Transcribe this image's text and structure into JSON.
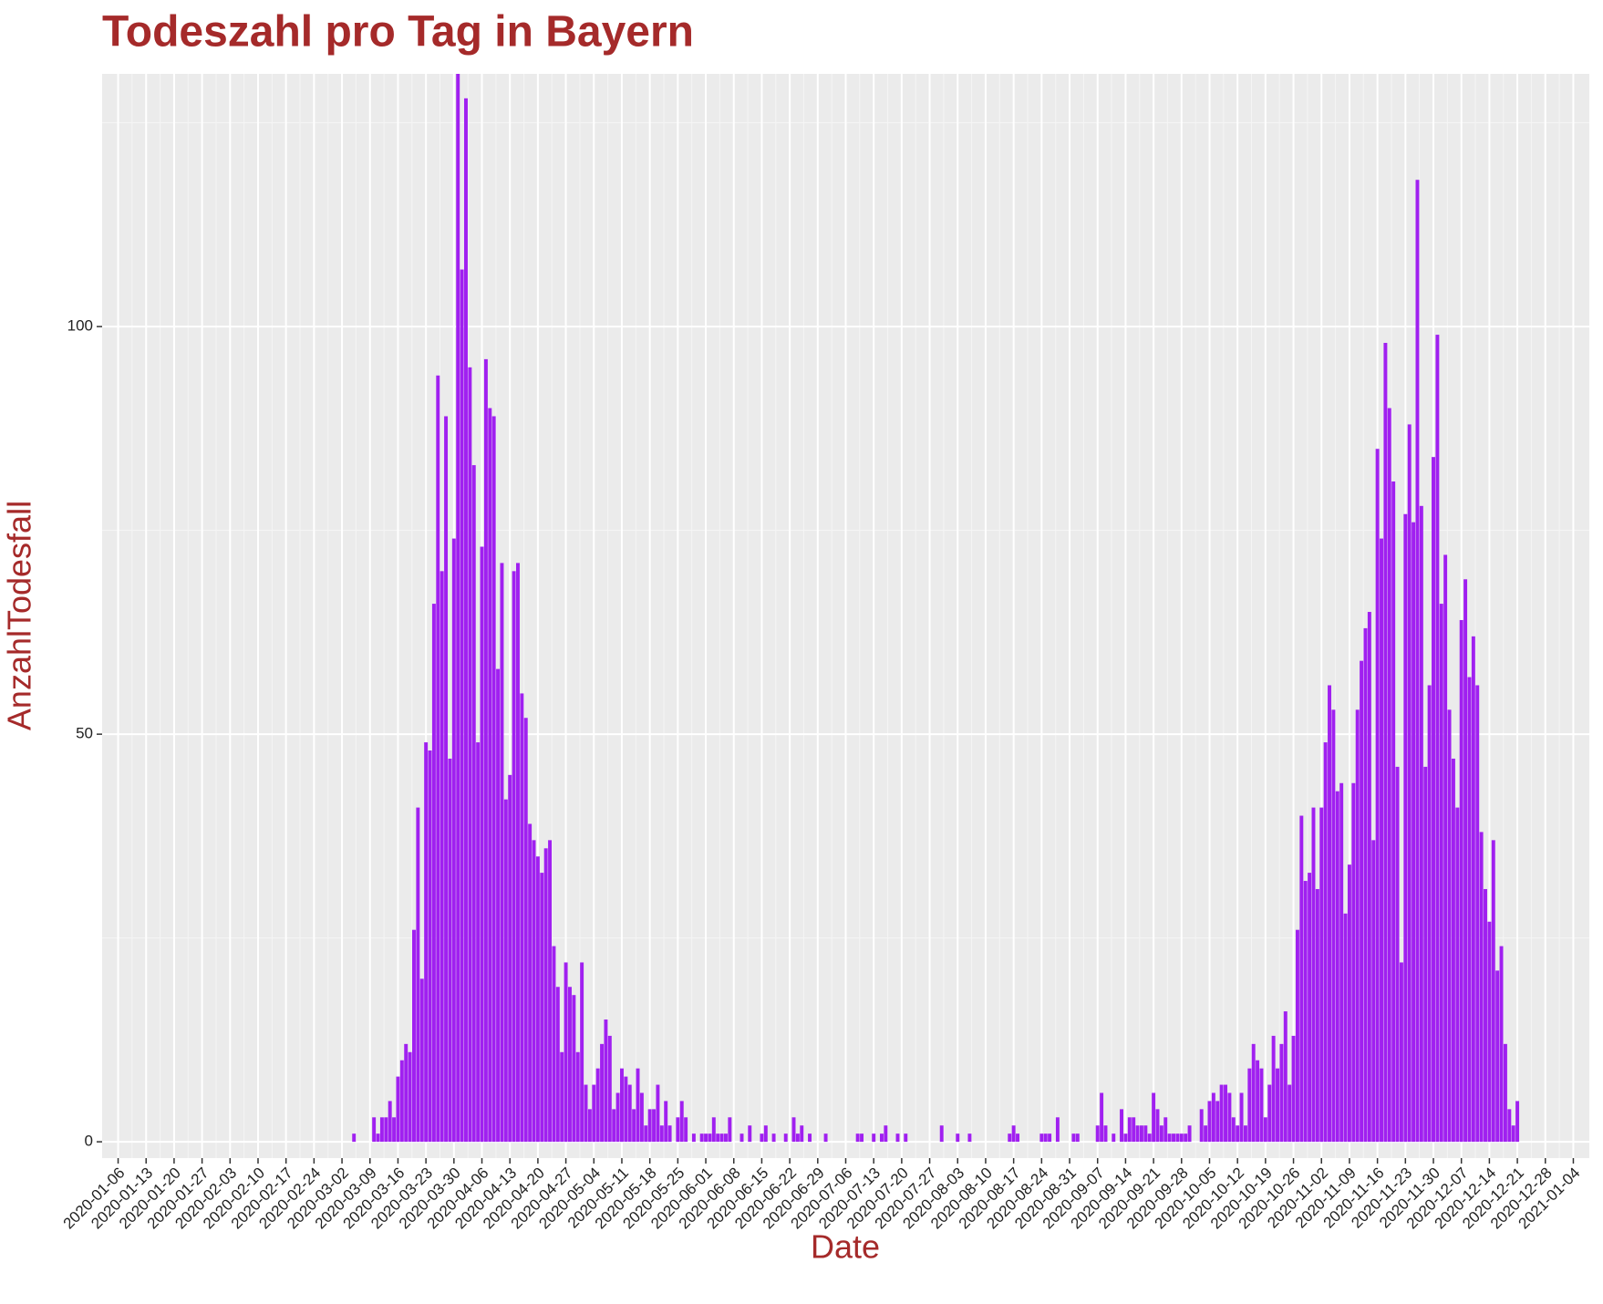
{
  "chart_data": {
    "type": "bar",
    "title": "Todeszahl pro Tag in Bayern",
    "x_label": "Date",
    "y_label": "AnzahlTodesfall",
    "color": "#a020f0",
    "grid": true,
    "xlim": [
      "2020-01-02",
      "2021-01-08"
    ],
    "ylim": [
      -2,
      131
    ],
    "yticks": [
      0,
      50,
      100
    ],
    "xticks": [
      "2020-01-06",
      "2020-01-13",
      "2020-01-20",
      "2020-01-27",
      "2020-02-03",
      "2020-02-10",
      "2020-02-17",
      "2020-02-24",
      "2020-03-02",
      "2020-03-09",
      "2020-03-16",
      "2020-03-23",
      "2020-03-30",
      "2020-04-06",
      "2020-04-13",
      "2020-04-20",
      "2020-04-27",
      "2020-05-04",
      "2020-05-11",
      "2020-05-18",
      "2020-05-25",
      "2020-06-01",
      "2020-06-08",
      "2020-06-15",
      "2020-06-22",
      "2020-06-29",
      "2020-07-06",
      "2020-07-13",
      "2020-07-20",
      "2020-07-27",
      "2020-08-03",
      "2020-08-10",
      "2020-08-17",
      "2020-08-24",
      "2020-08-31",
      "2020-09-07",
      "2020-09-14",
      "2020-09-21",
      "2020-09-28",
      "2020-10-05",
      "2020-10-12",
      "2020-10-19",
      "2020-10-26",
      "2020-11-02",
      "2020-11-09",
      "2020-11-16",
      "2020-11-23",
      "2020-11-30",
      "2020-12-07",
      "2020-12-14",
      "2020-12-21",
      "2020-12-28",
      "2021-01-04"
    ],
    "x": [
      "2020-03-05",
      "2020-03-06",
      "2020-03-07",
      "2020-03-08",
      "2020-03-09",
      "2020-03-10",
      "2020-03-11",
      "2020-03-12",
      "2020-03-13",
      "2020-03-14",
      "2020-03-15",
      "2020-03-16",
      "2020-03-17",
      "2020-03-18",
      "2020-03-19",
      "2020-03-20",
      "2020-03-21",
      "2020-03-22",
      "2020-03-23",
      "2020-03-24",
      "2020-03-25",
      "2020-03-26",
      "2020-03-27",
      "2020-03-28",
      "2020-03-29",
      "2020-03-30",
      "2020-03-31",
      "2020-04-01",
      "2020-04-02",
      "2020-04-03",
      "2020-04-04",
      "2020-04-05",
      "2020-04-06",
      "2020-04-07",
      "2020-04-08",
      "2020-04-09",
      "2020-04-10",
      "2020-04-11",
      "2020-04-12",
      "2020-04-13",
      "2020-04-14",
      "2020-04-15",
      "2020-04-16",
      "2020-04-17",
      "2020-04-18",
      "2020-04-19",
      "2020-04-20",
      "2020-04-21",
      "2020-04-22",
      "2020-04-23",
      "2020-04-24",
      "2020-04-25",
      "2020-04-26",
      "2020-04-27",
      "2020-04-28",
      "2020-04-29",
      "2020-04-30",
      "2020-05-01",
      "2020-05-02",
      "2020-05-03",
      "2020-05-04",
      "2020-05-05",
      "2020-05-06",
      "2020-05-07",
      "2020-05-08",
      "2020-05-09",
      "2020-05-10",
      "2020-05-11",
      "2020-05-12",
      "2020-05-13",
      "2020-05-14",
      "2020-05-15",
      "2020-05-16",
      "2020-05-17",
      "2020-05-18",
      "2020-05-19",
      "2020-05-20",
      "2020-05-21",
      "2020-05-22",
      "2020-05-23",
      "2020-05-24",
      "2020-05-25",
      "2020-05-26",
      "2020-05-27",
      "2020-05-28",
      "2020-05-29",
      "2020-05-30",
      "2020-05-31",
      "2020-06-01",
      "2020-06-02",
      "2020-06-03",
      "2020-06-04",
      "2020-06-05",
      "2020-06-06",
      "2020-06-07",
      "2020-06-08",
      "2020-06-09",
      "2020-06-10",
      "2020-06-11",
      "2020-06-12",
      "2020-06-13",
      "2020-06-14",
      "2020-06-15",
      "2020-06-16",
      "2020-06-17",
      "2020-06-18",
      "2020-06-19",
      "2020-06-20",
      "2020-06-21",
      "2020-06-22",
      "2020-06-23",
      "2020-06-24",
      "2020-06-25",
      "2020-06-26",
      "2020-06-27",
      "2020-06-28",
      "2020-06-29",
      "2020-06-30",
      "2020-07-01",
      "2020-07-02",
      "2020-07-03",
      "2020-07-04",
      "2020-07-05",
      "2020-07-06",
      "2020-07-07",
      "2020-07-08",
      "2020-07-09",
      "2020-07-10",
      "2020-07-11",
      "2020-07-12",
      "2020-07-13",
      "2020-07-14",
      "2020-07-15",
      "2020-07-16",
      "2020-07-17",
      "2020-07-18",
      "2020-07-19",
      "2020-07-20",
      "2020-07-21",
      "2020-07-22",
      "2020-07-23",
      "2020-07-24",
      "2020-07-25",
      "2020-07-26",
      "2020-07-27",
      "2020-07-28",
      "2020-07-29",
      "2020-07-30",
      "2020-07-31",
      "2020-08-01",
      "2020-08-02",
      "2020-08-03",
      "2020-08-04",
      "2020-08-05",
      "2020-08-06",
      "2020-08-07",
      "2020-08-08",
      "2020-08-09",
      "2020-08-10",
      "2020-08-11",
      "2020-08-12",
      "2020-08-13",
      "2020-08-14",
      "2020-08-15",
      "2020-08-16",
      "2020-08-17",
      "2020-08-18",
      "2020-08-19",
      "2020-08-20",
      "2020-08-21",
      "2020-08-22",
      "2020-08-23",
      "2020-08-24",
      "2020-08-25",
      "2020-08-26",
      "2020-08-27",
      "2020-08-28",
      "2020-08-29",
      "2020-08-30",
      "2020-08-31",
      "2020-09-01",
      "2020-09-02",
      "2020-09-03",
      "2020-09-04",
      "2020-09-05",
      "2020-09-06",
      "2020-09-07",
      "2020-09-08",
      "2020-09-09",
      "2020-09-10",
      "2020-09-11",
      "2020-09-12",
      "2020-09-13",
      "2020-09-14",
      "2020-09-15",
      "2020-09-16",
      "2020-09-17",
      "2020-09-18",
      "2020-09-19",
      "2020-09-20",
      "2020-09-21",
      "2020-09-22",
      "2020-09-23",
      "2020-09-24",
      "2020-09-25",
      "2020-09-26",
      "2020-09-27",
      "2020-09-28",
      "2020-09-29",
      "2020-09-30",
      "2020-10-01",
      "2020-10-02",
      "2020-10-03",
      "2020-10-04",
      "2020-10-05",
      "2020-10-06",
      "2020-10-07",
      "2020-10-08",
      "2020-10-09",
      "2020-10-10",
      "2020-10-11",
      "2020-10-12",
      "2020-10-13",
      "2020-10-14",
      "2020-10-15",
      "2020-10-16",
      "2020-10-17",
      "2020-10-18",
      "2020-10-19",
      "2020-10-20",
      "2020-10-21",
      "2020-10-22",
      "2020-10-23",
      "2020-10-24",
      "2020-10-25",
      "2020-10-26",
      "2020-10-27",
      "2020-10-28",
      "2020-10-29",
      "2020-10-30",
      "2020-10-31",
      "2020-11-01",
      "2020-11-02",
      "2020-11-03",
      "2020-11-04",
      "2020-11-05",
      "2020-11-06",
      "2020-11-07",
      "2020-11-08",
      "2020-11-09",
      "2020-11-10",
      "2020-11-11",
      "2020-11-12",
      "2020-11-13",
      "2020-11-14",
      "2020-11-15",
      "2020-11-16",
      "2020-11-17",
      "2020-11-18",
      "2020-11-19",
      "2020-11-20",
      "2020-11-21",
      "2020-11-22",
      "2020-11-23",
      "2020-11-24",
      "2020-11-25",
      "2020-11-26",
      "2020-11-27",
      "2020-11-28",
      "2020-11-29",
      "2020-11-30",
      "2020-12-01",
      "2020-12-02",
      "2020-12-03",
      "2020-12-04",
      "2020-12-05",
      "2020-12-06",
      "2020-12-07",
      "2020-12-08",
      "2020-12-09",
      "2020-12-10",
      "2020-12-11",
      "2020-12-12",
      "2020-12-13",
      "2020-12-14",
      "2020-12-15",
      "2020-12-16",
      "2020-12-17",
      "2020-12-18",
      "2020-12-19",
      "2020-12-20",
      "2020-12-21"
    ],
    "values": [
      1,
      0,
      0,
      0,
      0,
      3,
      1,
      3,
      3,
      5,
      3,
      8,
      10,
      12,
      11,
      26,
      41,
      20,
      49,
      48,
      66,
      94,
      70,
      89,
      47,
      74,
      131,
      107,
      128,
      95,
      83,
      49,
      73,
      96,
      90,
      89,
      58,
      71,
      42,
      45,
      70,
      71,
      55,
      52,
      39,
      37,
      35,
      33,
      36,
      37,
      24,
      19,
      11,
      22,
      19,
      18,
      11,
      22,
      7,
      4,
      7,
      9,
      12,
      15,
      13,
      4,
      6,
      9,
      8,
      7,
      4,
      9,
      6,
      2,
      4,
      4,
      7,
      2,
      5,
      2,
      0,
      3,
      5,
      3,
      0,
      1,
      0,
      1,
      1,
      1,
      3,
      1,
      1,
      1,
      3,
      0,
      0,
      1,
      0,
      2,
      0,
      0,
      1,
      2,
      0,
      1,
      0,
      0,
      1,
      0,
      3,
      1,
      2,
      0,
      1,
      0,
      0,
      0,
      1,
      0,
      0,
      0,
      0,
      0,
      0,
      0,
      1,
      1,
      0,
      0,
      1,
      0,
      1,
      2,
      0,
      0,
      1,
      0,
      1,
      0,
      0,
      0,
      0,
      0,
      0,
      0,
      0,
      2,
      0,
      0,
      0,
      1,
      0,
      0,
      1,
      0,
      0,
      0,
      0,
      0,
      0,
      0,
      0,
      0,
      1,
      2,
      1,
      0,
      0,
      0,
      0,
      0,
      1,
      1,
      1,
      0,
      3,
      0,
      0,
      0,
      1,
      1,
      0,
      0,
      0,
      0,
      2,
      6,
      2,
      0,
      1,
      0,
      4,
      1,
      3,
      3,
      2,
      2,
      2,
      1,
      6,
      4,
      2,
      3,
      1,
      1,
      1,
      1,
      1,
      2,
      0,
      0,
      4,
      2,
      5,
      6,
      5,
      7,
      7,
      6,
      3,
      2,
      6,
      2,
      9,
      12,
      10,
      9,
      3,
      7,
      13,
      9,
      12,
      16,
      7,
      13,
      26,
      40,
      32,
      33,
      41,
      31,
      41,
      49,
      56,
      53,
      43,
      44,
      28,
      34,
      44,
      53,
      59,
      63,
      65,
      37,
      85,
      74,
      98,
      90,
      81,
      46,
      22,
      77,
      88,
      76,
      118,
      78,
      46,
      56,
      84,
      99,
      66,
      72,
      53,
      47,
      41,
      64,
      69,
      57,
      62,
      56,
      38,
      31,
      27,
      37,
      21,
      24,
      12,
      4,
      2,
      5
    ]
  }
}
